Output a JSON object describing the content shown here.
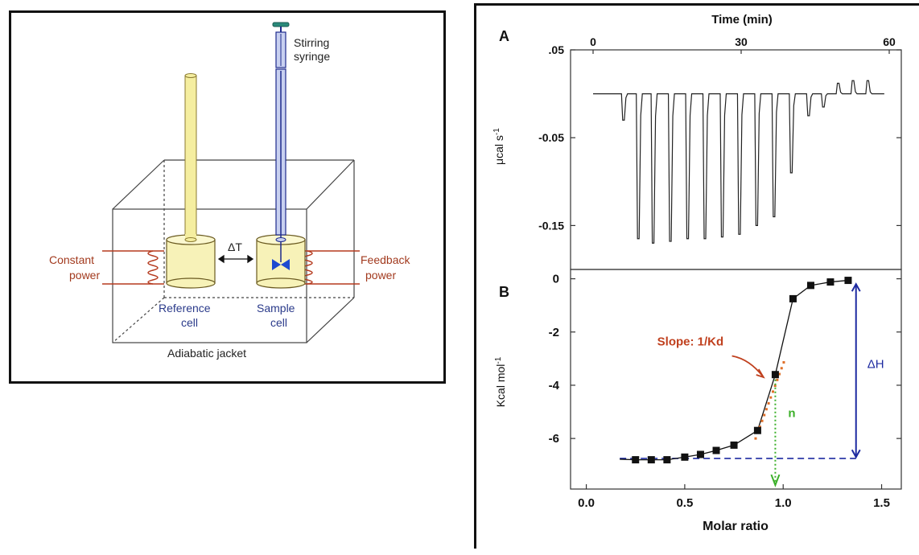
{
  "apparatus": {
    "labels": {
      "stirring_syringe": [
        "Stirring",
        "syringe"
      ],
      "delta_t": "ΔT",
      "constant_power": [
        "Constant",
        "power"
      ],
      "feedback_power": [
        "Feedback",
        "power"
      ],
      "reference_cell": [
        "Reference",
        "cell"
      ],
      "sample_cell": [
        "Sample",
        "cell"
      ],
      "adiabatic_jacket": "Adiabatic jacket"
    },
    "colors": {
      "cell_fill": "#f7f2b8",
      "rod_fill": "#f5eea0",
      "syringe_blue": "#1d2a8c",
      "heater_red": "#b53a1e",
      "label_blue": "#2a3a8a",
      "label_red": "#a23a1e",
      "plunger_teal": "#2a8a7a"
    }
  },
  "chart_data": [
    {
      "panel": "A",
      "type": "line",
      "top_xlabel": "Time (min)",
      "top_ticks": [
        "0",
        "30",
        "60"
      ],
      "top_xlim": [
        0,
        60
      ],
      "ylabel_html": "μcal s",
      "ylabel_exp": "-1",
      "yticks": [
        ".05",
        "-0.05",
        "-0.15"
      ],
      "yticks_values": [
        0.05,
        -0.05,
        -0.15
      ],
      "ylim": [
        -0.2,
        0.05
      ],
      "baseline": 0.0,
      "injections": [
        {
          "t": 6,
          "peak": -0.03
        },
        {
          "t": 9,
          "peak": -0.165
        },
        {
          "t": 12,
          "peak": -0.17
        },
        {
          "t": 15.5,
          "peak": -0.168
        },
        {
          "t": 19,
          "peak": -0.165
        },
        {
          "t": 22.5,
          "peak": -0.165
        },
        {
          "t": 26,
          "peak": -0.163
        },
        {
          "t": 29.5,
          "peak": -0.16
        },
        {
          "t": 33,
          "peak": -0.15
        },
        {
          "t": 36.5,
          "peak": -0.14
        },
        {
          "t": 40,
          "peak": -0.09
        },
        {
          "t": 43.5,
          "peak": -0.025
        },
        {
          "t": 46.5,
          "peak": -0.015
        },
        {
          "t": 49.5,
          "peak": 0.012
        },
        {
          "t": 52.5,
          "peak": 0.015
        },
        {
          "t": 55.5,
          "peak": 0.015
        }
      ]
    },
    {
      "panel": "B",
      "type": "scatter",
      "xlabel": "Molar ratio",
      "ylabel": "Kcal mol",
      "ylabel_exp": "-1",
      "xticks": [
        "0.0",
        "0.5",
        "1.0",
        "1.5"
      ],
      "xticks_values": [
        0.0,
        0.5,
        1.0,
        1.5
      ],
      "yticks": [
        "0",
        "-2",
        "-4",
        "-6"
      ],
      "yticks_values": [
        0,
        -2,
        -4,
        -6
      ],
      "xlim": [
        -0.08,
        1.6
      ],
      "ylim": [
        -7.9,
        0.35
      ],
      "points": [
        [
          0.25,
          -6.8
        ],
        [
          0.33,
          -6.8
        ],
        [
          0.41,
          -6.8
        ],
        [
          0.5,
          -6.7
        ],
        [
          0.58,
          -6.6
        ],
        [
          0.66,
          -6.45
        ],
        [
          0.75,
          -6.25
        ],
        [
          0.87,
          -5.7
        ],
        [
          0.96,
          -3.6
        ],
        [
          1.05,
          -0.75
        ],
        [
          1.14,
          -0.25
        ],
        [
          1.24,
          -0.12
        ],
        [
          1.33,
          -0.06
        ]
      ],
      "annotations": {
        "slope": "Slope: 1/Kd",
        "n": "n",
        "delta_h": "ΔH"
      },
      "baseline_y": -6.75,
      "colors": {
        "slope": "#c0401e",
        "n": "#3cb02a",
        "delta_h": "#1d2aa0"
      }
    }
  ]
}
